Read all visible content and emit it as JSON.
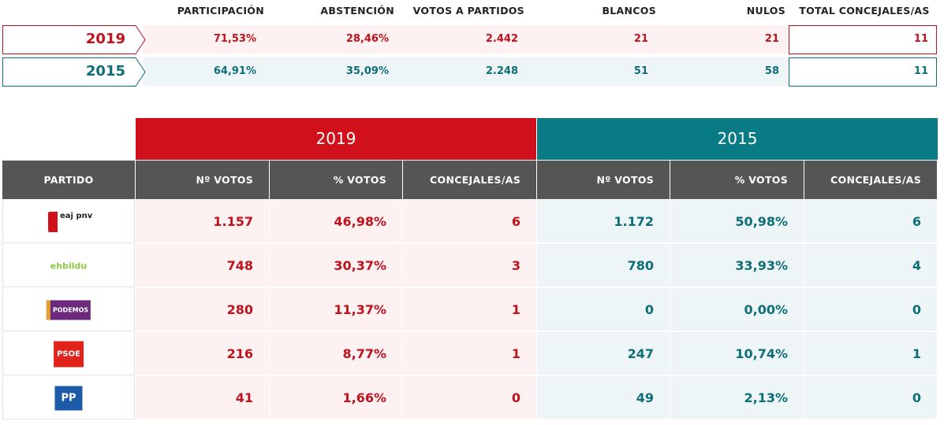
{
  "summary": {
    "headers": [
      "PARTICIPACIÓN",
      "ABSTENCIÓN",
      "VOTOS A PARTIDOS",
      "BLANCOS",
      "NULOS",
      "TOTAL CONCEJALES/AS"
    ],
    "rows": [
      {
        "year": "2019",
        "values": [
          "71,53%",
          "28,46%",
          "2.442",
          "21",
          "21",
          "11"
        ]
      },
      {
        "year": "2015",
        "values": [
          "64,91%",
          "35,09%",
          "2.248",
          "51",
          "58",
          "11"
        ]
      }
    ]
  },
  "table": {
    "years": [
      "2019",
      "2015"
    ],
    "headers": [
      "PARTIDO",
      "Nº VOTOS",
      "% VOTOS",
      "CONCEJALES/AS",
      "Nº VOTOS",
      "% VOTOS",
      "CONCEJALES/AS"
    ],
    "rows": [
      {
        "logo": "eaj pnv",
        "values": [
          "1.157",
          "46,98%",
          "6",
          "1.172",
          "50,98%",
          "6"
        ]
      },
      {
        "logo": "ehbildu",
        "values": [
          "748",
          "30,37%",
          "3",
          "780",
          "33,93%",
          "4"
        ]
      },
      {
        "logo": "PODEMOS",
        "values": [
          "280",
          "11,37%",
          "1",
          "0",
          "0,00%",
          "0"
        ]
      },
      {
        "logo": "PSOE",
        "values": [
          "216",
          "8,77%",
          "1",
          "247",
          "10,74%",
          "1"
        ]
      },
      {
        "logo": "PP",
        "values": [
          "41",
          "1,66%",
          "0",
          "49",
          "2,13%",
          "0"
        ]
      }
    ]
  }
}
